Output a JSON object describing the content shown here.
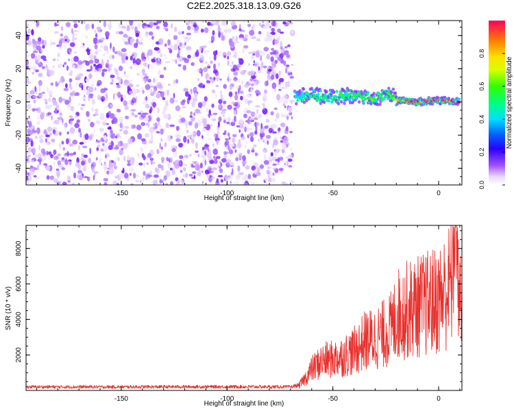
{
  "title": "C2E2.2025.318.13.09.G26",
  "colorbar": {
    "label": "Normalized spectral amplitude",
    "ticks": [
      0.0,
      0.2,
      0.4,
      0.6,
      0.8
    ],
    "tick_labels": [
      "0.0",
      "0.2",
      "0.4",
      "0.6",
      "0.8"
    ],
    "range": [
      0,
      1
    ]
  },
  "chart_data": [
    {
      "type": "heatmap",
      "name": "spectrogram",
      "xlabel": "Height of straight line (km)",
      "ylabel": "Frequency (Hz)",
      "xlim": [
        -195,
        11
      ],
      "ylim": [
        -50,
        49
      ],
      "xticks": [
        -150,
        -100,
        -50,
        0
      ],
      "xtick_labels": [
        "-150",
        "-100",
        "-50",
        "0"
      ],
      "yticks": [
        -40,
        -20,
        0,
        20,
        40
      ],
      "ytick_labels": [
        "-40",
        "-20",
        "0",
        "20",
        "40"
      ],
      "noise_region_x": [
        -195,
        -69
      ],
      "signal_track": [
        {
          "x": -68,
          "freq": 3,
          "amp": 0.4
        },
        {
          "x": -60,
          "freq": 4,
          "amp": 0.45
        },
        {
          "x": -50,
          "freq": 3,
          "amp": 0.5
        },
        {
          "x": -40,
          "freq": 4,
          "amp": 0.55
        },
        {
          "x": -30,
          "freq": 2,
          "amp": 0.6
        },
        {
          "x": -22,
          "freq": 5,
          "amp": 0.55
        },
        {
          "x": -20,
          "freq": 1,
          "amp": 0.8
        },
        {
          "x": -10,
          "freq": 0,
          "amp": 0.92
        },
        {
          "x": 0,
          "freq": 1,
          "amp": 0.95
        },
        {
          "x": 10,
          "freq": 0,
          "amp": 0.95
        }
      ]
    },
    {
      "type": "line",
      "name": "snr",
      "xlabel": "Height of straight line (km)",
      "ylabel": "SNR (10 * v/v)",
      "xlim": [
        -195,
        11
      ],
      "ylim": [
        0,
        9300
      ],
      "xticks": [
        -150,
        -100,
        -50,
        0
      ],
      "xtick_labels": [
        "-150",
        "-100",
        "-50",
        "0"
      ],
      "yticks": [
        2000,
        4000,
        6000,
        8000
      ],
      "ytick_labels": [
        "2000",
        "4000",
        "6000",
        "8000"
      ],
      "color": "#e8302c",
      "series": [
        {
          "name": "SNR",
          "x": [
            -195,
            -150,
            -100,
            -70,
            -66,
            -62,
            -60,
            -55,
            -50,
            -45,
            -40,
            -35,
            -30,
            -25,
            -22,
            -20,
            -15,
            -10,
            -5,
            0,
            5,
            8,
            10
          ],
          "values": [
            200,
            200,
            210,
            200,
            300,
            900,
            1300,
            1800,
            1900,
            2100,
            2400,
            3000,
            3200,
            3500,
            3800,
            4600,
            4900,
            5100,
            5300,
            5500,
            6300,
            7600,
            5400
          ]
        }
      ]
    }
  ]
}
